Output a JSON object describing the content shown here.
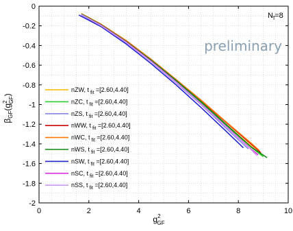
{
  "chart_data": {
    "type": "line",
    "title": "",
    "annotation_nf": {
      "base": "N",
      "sub": "f",
      "rest": "=8"
    },
    "watermark": "preliminary",
    "xlabel": {
      "base": "g",
      "sup": "2",
      "sub": "GF"
    },
    "ylabel": {
      "base": "β",
      "sub1": "GF",
      "paren_open": "(g",
      "sup": "2",
      "sub2": "GF",
      "paren_close": ")"
    },
    "xlim": [
      0,
      10
    ],
    "ylim": [
      -2,
      0
    ],
    "xticks": [
      "0",
      "2",
      "4",
      "6",
      "8",
      "10"
    ],
    "xtick_values": [
      0,
      2,
      4,
      6,
      8,
      10
    ],
    "yticks": [
      "0",
      "-0.2",
      "-0.4",
      "-0.6",
      "-0.8",
      "-1",
      "-1.2",
      "-1.4",
      "-1.6",
      "-1.8",
      "-2"
    ],
    "ytick_values": [
      0,
      -0.2,
      -0.4,
      -0.6,
      -0.8,
      -1,
      -1.2,
      -1.4,
      -1.6,
      -1.8,
      -2
    ],
    "grid": true,
    "legend_position": "bottom-left",
    "series": [
      {
        "name": "nZW",
        "label_rest": ", t",
        "label_sub": "fit",
        "label_range": "=[2.60,4.40]",
        "color": "#f5b800",
        "x": [
          1.7,
          2.5,
          3.5,
          4.5,
          5.5,
          6.5,
          7.5,
          8.5,
          8.95
        ],
        "y": [
          -0.08,
          -0.19,
          -0.36,
          -0.55,
          -0.76,
          -0.97,
          -1.2,
          -1.42,
          -1.52
        ]
      },
      {
        "name": "nZC",
        "label_rest": ", t",
        "label_sub": "fit",
        "label_range": "=[2.60,4.40]",
        "color": "#33cc33",
        "x": [
          1.7,
          2.5,
          3.5,
          4.5,
          5.5,
          6.5,
          7.5,
          8.5,
          9.0
        ],
        "y": [
          -0.085,
          -0.195,
          -0.365,
          -0.555,
          -0.765,
          -0.98,
          -1.21,
          -1.43,
          -1.53
        ]
      },
      {
        "name": "nZS",
        "label_rest": ", t",
        "label_sub": "fit",
        "label_range": "=[2.60,4.40]",
        "color": "#8888ee",
        "x": [
          1.7,
          2.5,
          3.5,
          4.5,
          5.5,
          6.5,
          7.5,
          8.4
        ],
        "y": [
          -0.09,
          -0.2,
          -0.37,
          -0.565,
          -0.78,
          -1.0,
          -1.24,
          -1.45
        ]
      },
      {
        "name": "nWW",
        "label_rest": ", t",
        "label_sub": "fit",
        "label_range": "=[2.60,4.40]",
        "color": "#cc0000",
        "x": [
          1.7,
          2.5,
          3.5,
          4.5,
          5.5,
          6.5,
          7.5,
          8.5,
          8.9
        ],
        "y": [
          -0.08,
          -0.19,
          -0.355,
          -0.545,
          -0.75,
          -0.96,
          -1.18,
          -1.4,
          -1.49
        ]
      },
      {
        "name": "nWC",
        "label_rest": ", t",
        "label_sub": "fit",
        "label_range": "=[2.60,4.40]",
        "color": "#ff7700",
        "x": [
          1.7,
          2.5,
          3.5,
          4.5,
          5.5,
          6.5,
          7.5,
          8.5,
          8.85
        ],
        "y": [
          -0.075,
          -0.185,
          -0.35,
          -0.54,
          -0.745,
          -0.955,
          -1.175,
          -1.39,
          -1.47
        ]
      },
      {
        "name": "nWS",
        "label_rest": ", t",
        "label_sub": "fit",
        "label_range": "=[2.60,4.40]",
        "color": "#118811",
        "x": [
          1.7,
          2.5,
          3.5,
          4.5,
          5.5,
          6.5,
          7.5,
          8.5,
          9.15
        ],
        "y": [
          -0.08,
          -0.19,
          -0.36,
          -0.55,
          -0.755,
          -0.97,
          -1.2,
          -1.43,
          -1.54
        ]
      },
      {
        "name": "nSW",
        "label_rest": ", t",
        "label_sub": "fit",
        "label_range": "=[2.60,4.40]",
        "color": "#2222cc",
        "x": [
          1.6,
          2.5,
          3.5,
          4.5,
          5.5,
          6.5,
          7.5,
          8.2
        ],
        "y": [
          -0.09,
          -0.21,
          -0.385,
          -0.585,
          -0.8,
          -1.03,
          -1.27,
          -1.44
        ]
      },
      {
        "name": "nSC",
        "label_rest": ", t",
        "label_sub": "fit",
        "label_range": "=[2.60,4.40]",
        "color": "#dd33dd",
        "x": [
          1.7,
          2.5,
          3.5,
          4.5,
          5.5,
          6.5,
          7.5,
          8.5,
          8.8
        ],
        "y": [
          -0.085,
          -0.195,
          -0.365,
          -0.56,
          -0.77,
          -0.99,
          -1.22,
          -1.45,
          -1.51
        ]
      },
      {
        "name": "nSS",
        "label_rest": ", t",
        "label_sub": "fit",
        "label_range": "=[2.60,4.40]",
        "color": "#cc99ee",
        "x": [
          1.7,
          2.5,
          3.5,
          4.5,
          5.5,
          6.5,
          7.5,
          8.5,
          8.75
        ],
        "y": [
          -0.085,
          -0.2,
          -0.37,
          -0.565,
          -0.775,
          -0.995,
          -1.225,
          -1.455,
          -1.52
        ]
      }
    ]
  }
}
